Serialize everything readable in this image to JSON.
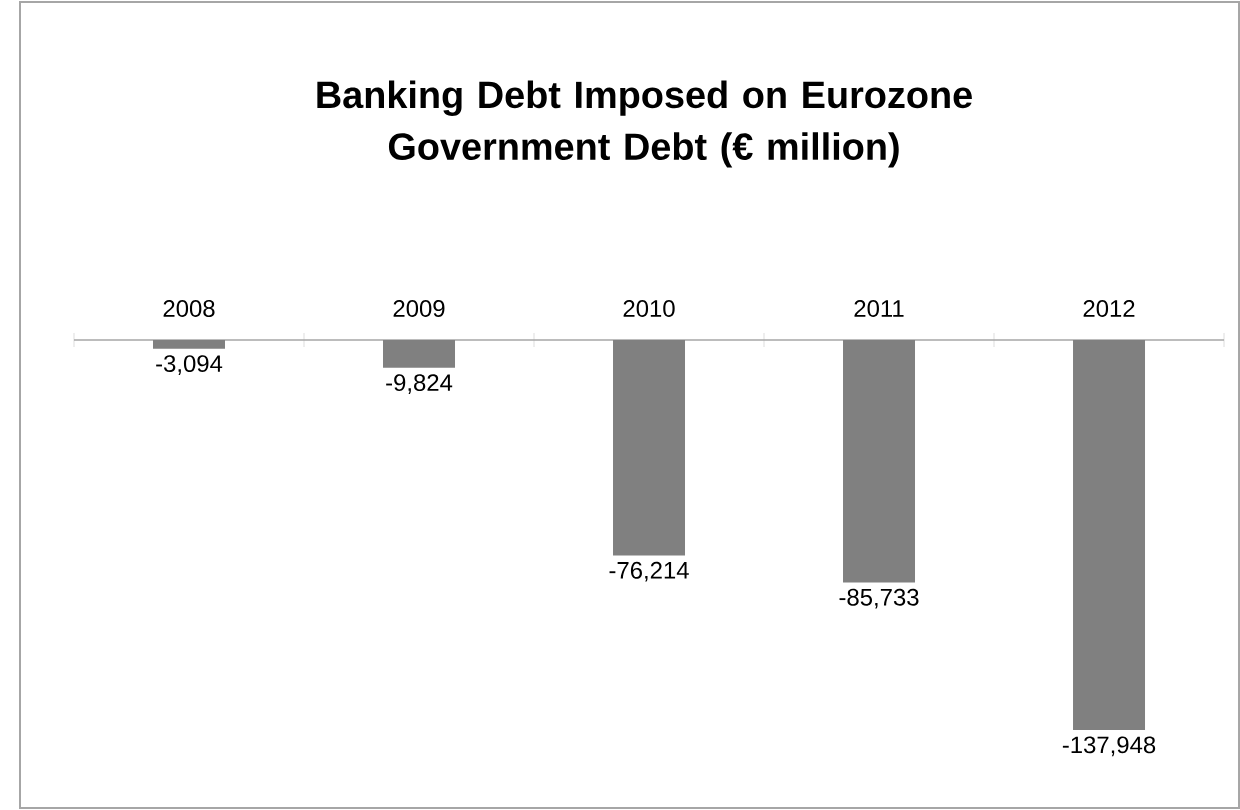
{
  "chart_data": {
    "type": "bar",
    "title": "Banking Debt Imposed on Eurozone Government Debt (€ million)",
    "categories": [
      "2008",
      "2009",
      "2010",
      "2011",
      "2012"
    ],
    "values": [
      -3094,
      -9824,
      -76214,
      -85733,
      -137948
    ],
    "value_labels": [
      "-3,094",
      "-9,824",
      "-76,214",
      "-85,733",
      "-137,948"
    ],
    "color": "#808080"
  }
}
